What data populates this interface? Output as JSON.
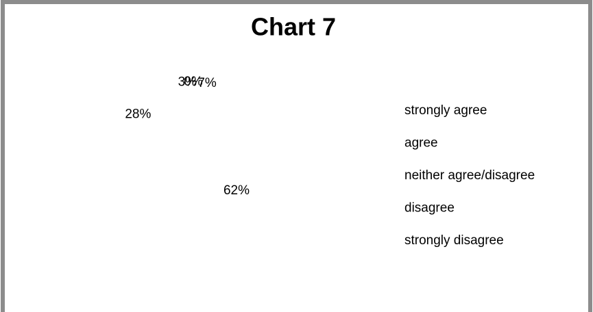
{
  "chart_data": {
    "type": "pie",
    "title": "Chart 7",
    "categories": [
      "strongly agree",
      "agree",
      "neither agree/disagree",
      "disagree",
      "strongly disagree"
    ],
    "values": [
      7,
      62,
      28,
      3,
      0
    ],
    "value_labels": [
      "7%",
      "62%",
      "28%",
      "3%",
      "0%"
    ],
    "colors": [
      "#ffffff",
      "#ffffff",
      "#ffffff",
      "#ffffff",
      "#ffffff"
    ],
    "legend": "right"
  }
}
